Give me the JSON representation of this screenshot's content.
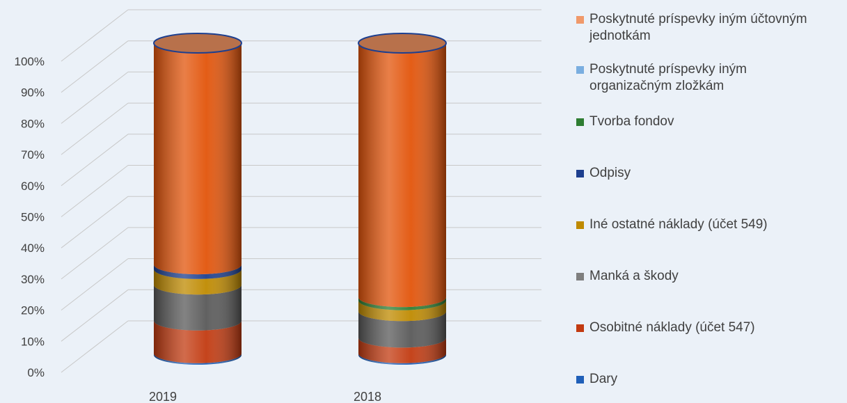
{
  "chart_data": {
    "type": "bar",
    "stacked": true,
    "stacked_percent": true,
    "three_d": true,
    "categories": [
      "2019",
      "2018"
    ],
    "yticks": [
      "0%",
      "10%",
      "20%",
      "30%",
      "40%",
      "50%",
      "60%",
      "70%",
      "80%",
      "90%",
      "100%"
    ],
    "ylim": [
      0,
      100
    ],
    "grid": true,
    "legend_position": "right",
    "series": [
      {
        "name": "Dary",
        "color": "#1f5fb8",
        "values": [
          0.5,
          0.5
        ]
      },
      {
        "name": "Osobitné náklady (účet 547)",
        "color": "#c23a10",
        "values": [
          10.5,
          5
        ]
      },
      {
        "name": "Manká a škody",
        "color": "#595959",
        "values": [
          11.5,
          8.5
        ]
      },
      {
        "name": "Iné ostatné  náklady (účet 549)",
        "color": "#bf8a00",
        "values": [
          5,
          3.5
        ]
      },
      {
        "name": "Tvorba fondov",
        "color": "#2e7d32",
        "values": [
          0,
          1
        ]
      },
      {
        "name": "Odpisy",
        "color": "#1d3f8f",
        "values": [
          1.5,
          0
        ]
      },
      {
        "name": "Poskytnuté príspevky iným organizačným zložkám",
        "color": "#7aaee0",
        "values": [
          0,
          0
        ]
      },
      {
        "name": "Poskytnuté príspevky iným účtovným jednotkám",
        "color": "#e2540a",
        "values": [
          71,
          81.5
        ]
      }
    ]
  },
  "legend": [
    {
      "lines": [
        "Poskytnuté príspevky iným účtovným",
        "jednotkám"
      ],
      "color": "#f0996a"
    },
    {
      "lines": [
        "Poskytnuté príspevky iným",
        "organizačným zložkám"
      ],
      "color": "#7aaee0"
    },
    {
      "lines": [
        "Tvorba fondov"
      ],
      "color": "#2e7d32"
    },
    {
      "lines": [
        "Odpisy"
      ],
      "color": "#1d3f8f"
    },
    {
      "lines": [
        "Iné ostatné  náklady (účet 549)"
      ],
      "color": "#bf8a00"
    },
    {
      "lines": [
        "Manká a škody"
      ],
      "color": "#7f7f7f"
    },
    {
      "lines": [
        "Osobitné náklady (účet 547)"
      ],
      "color": "#c23a10"
    },
    {
      "lines": [
        "Dary"
      ],
      "color": "#1f5fb8"
    }
  ]
}
